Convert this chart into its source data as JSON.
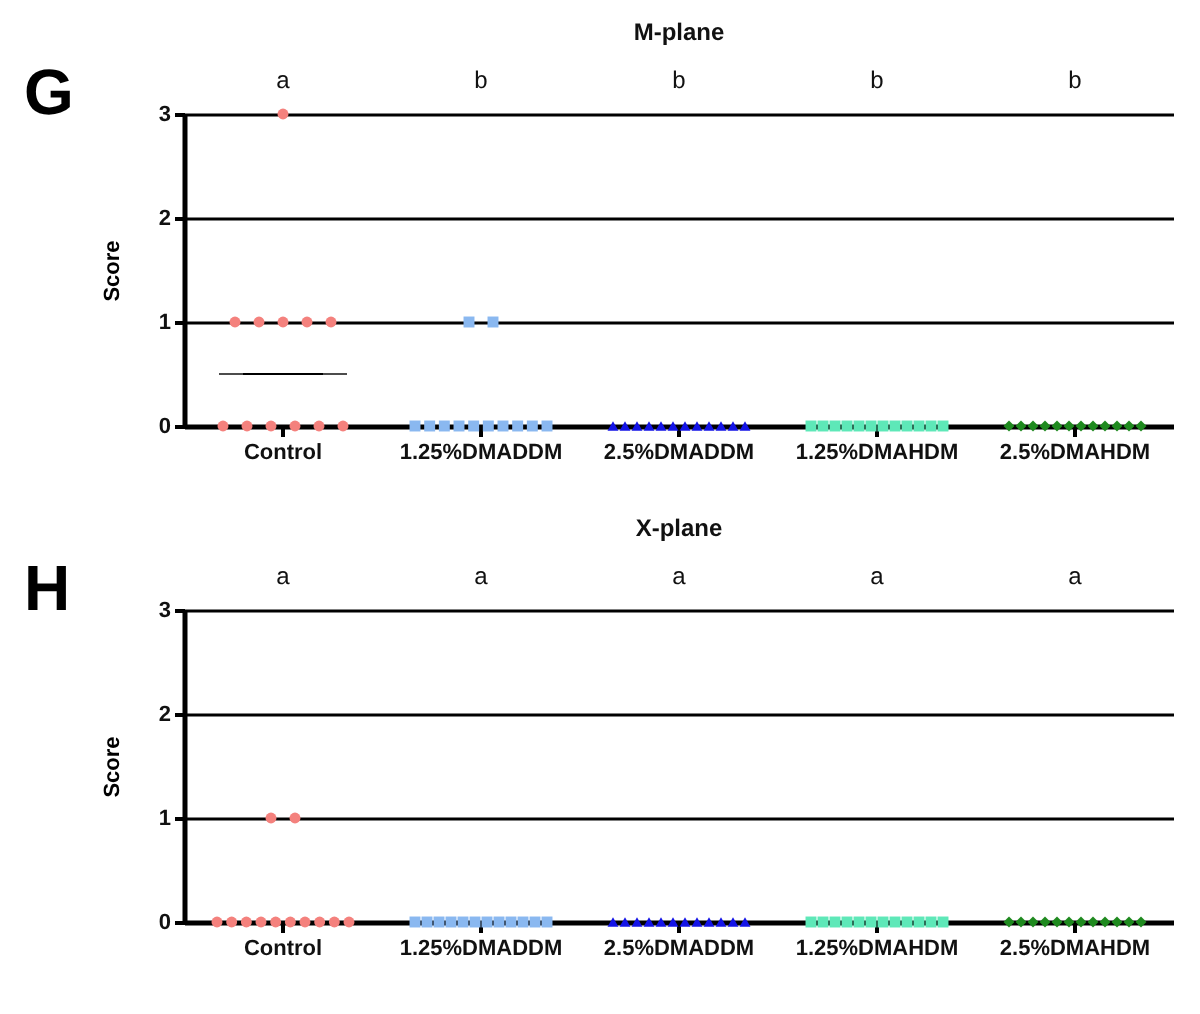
{
  "chart_data": [
    {
      "type": "scatter",
      "title": "M-plane",
      "ylabel": "Score",
      "categories": [
        "Control",
        "1.25%DMADDM",
        "2.5%DMADDM",
        "1.25%DMAHDM",
        "2.5%DMAHDM"
      ],
      "ylim": [
        0,
        3
      ],
      "yticks": [
        0,
        1,
        2,
        3
      ],
      "grid": "y",
      "series": [
        {
          "color": "#f4817d",
          "marker": "circle",
          "x": [
            "Control",
            "Control",
            "Control",
            "Control",
            "Control",
            "Control",
            "Control",
            "Control",
            "Control",
            "Control",
            "Control",
            "Control"
          ],
          "values": [
            3,
            1,
            1,
            1,
            1,
            1,
            0,
            0,
            0,
            0,
            0,
            0
          ]
        },
        {
          "color": "#8ab8f0",
          "marker": "square",
          "x": [
            "1.25%DMADDM",
            "1.25%DMADDM",
            "1.25%DMADDM",
            "1.25%DMADDM",
            "1.25%DMADDM",
            "1.25%DMADDM",
            "1.25%DMADDM",
            "1.25%DMADDM",
            "1.25%DMADDM",
            "1.25%DMADDM",
            "1.25%DMADDM",
            "1.25%DMADDM"
          ],
          "values": [
            1,
            1,
            0,
            0,
            0,
            0,
            0,
            0,
            0,
            0,
            0,
            0
          ]
        },
        {
          "color": "#1414e6",
          "marker": "triangle",
          "x": [
            "2.5%DMADDM",
            "2.5%DMADDM",
            "2.5%DMADDM",
            "2.5%DMADDM",
            "2.5%DMADDM",
            "2.5%DMADDM",
            "2.5%DMADDM",
            "2.5%DMADDM",
            "2.5%DMADDM",
            "2.5%DMADDM",
            "2.5%DMADDM",
            "2.5%DMADDM"
          ],
          "values": [
            0,
            0,
            0,
            0,
            0,
            0,
            0,
            0,
            0,
            0,
            0,
            0
          ]
        },
        {
          "color": "#5ee8b8",
          "marker": "square",
          "x": [
            "1.25%DMAHDM",
            "1.25%DMAHDM",
            "1.25%DMAHDM",
            "1.25%DMAHDM",
            "1.25%DMAHDM",
            "1.25%DMAHDM",
            "1.25%DMAHDM",
            "1.25%DMAHDM",
            "1.25%DMAHDM",
            "1.25%DMAHDM",
            "1.25%DMAHDM",
            "1.25%DMAHDM"
          ],
          "values": [
            0,
            0,
            0,
            0,
            0,
            0,
            0,
            0,
            0,
            0,
            0,
            0
          ]
        },
        {
          "color": "#1f8a1f",
          "marker": "diamond",
          "x": [
            "2.5%DMAHDM",
            "2.5%DMAHDM",
            "2.5%DMAHDM",
            "2.5%DMAHDM",
            "2.5%DMAHDM",
            "2.5%DMAHDM",
            "2.5%DMAHDM",
            "2.5%DMAHDM",
            "2.5%DMAHDM",
            "2.5%DMAHDM",
            "2.5%DMAHDM",
            "2.5%DMAHDM"
          ],
          "values": [
            0,
            0,
            0,
            0,
            0,
            0,
            0,
            0,
            0,
            0,
            0,
            0
          ]
        },
        {
          "type": "box",
          "color": "#000000",
          "boxes": [
            {
              "low": 0.5,
              "q1": 0.5,
              "median": 0.5,
              "q3": 0.5,
              "high": 0.5
            },
            null,
            null,
            null,
            null
          ]
        }
      ],
      "annotations": [
        "G",
        "a",
        "b",
        "b",
        "b",
        "b"
      ]
    },
    {
      "type": "scatter",
      "title": "X-plane",
      "ylabel": "Score",
      "categories": [
        "Control",
        "1.25%DMADDM",
        "2.5%DMADDM",
        "1.25%DMAHDM",
        "2.5%DMAHDM"
      ],
      "ylim": [
        0,
        3
      ],
      "yticks": [
        0,
        1,
        2,
        3
      ],
      "grid": "y",
      "series": [
        {
          "color": "#f4817d",
          "marker": "circle",
          "x": [
            "Control",
            "Control",
            "Control",
            "Control",
            "Control",
            "Control",
            "Control",
            "Control",
            "Control",
            "Control",
            "Control",
            "Control"
          ],
          "values": [
            1,
            1,
            0,
            0,
            0,
            0,
            0,
            0,
            0,
            0,
            0,
            0
          ]
        },
        {
          "color": "#8ab8f0",
          "marker": "square",
          "x": [
            "1.25%DMADDM",
            "1.25%DMADDM",
            "1.25%DMADDM",
            "1.25%DMADDM",
            "1.25%DMADDM",
            "1.25%DMADDM",
            "1.25%DMADDM",
            "1.25%DMADDM",
            "1.25%DMADDM",
            "1.25%DMADDM",
            "1.25%DMADDM",
            "1.25%DMADDM"
          ],
          "values": [
            0,
            0,
            0,
            0,
            0,
            0,
            0,
            0,
            0,
            0,
            0,
            0
          ]
        },
        {
          "color": "#1414e6",
          "marker": "triangle",
          "x": [
            "2.5%DMADDM",
            "2.5%DMADDM",
            "2.5%DMADDM",
            "2.5%DMADDM",
            "2.5%DMADDM",
            "2.5%DMADDM",
            "2.5%DMADDM",
            "2.5%DMADDM",
            "2.5%DMADDM",
            "2.5%DMADDM",
            "2.5%DMADDM",
            "2.5%DMADDM"
          ],
          "values": [
            0,
            0,
            0,
            0,
            0,
            0,
            0,
            0,
            0,
            0,
            0,
            0
          ]
        },
        {
          "color": "#5ee8b8",
          "marker": "square",
          "x": [
            "1.25%DMAHDM",
            "1.25%DMAHDM",
            "1.25%DMAHDM",
            "1.25%DMAHDM",
            "1.25%DMAHDM",
            "1.25%DMAHDM",
            "1.25%DMAHDM",
            "1.25%DMAHDM",
            "1.25%DMAHDM",
            "1.25%DMAHDM",
            "1.25%DMAHDM",
            "1.25%DMAHDM"
          ],
          "values": [
            0,
            0,
            0,
            0,
            0,
            0,
            0,
            0,
            0,
            0,
            0,
            0
          ]
        },
        {
          "color": "#1f8a1f",
          "marker": "diamond",
          "x": [
            "2.5%DMAHDM",
            "2.5%DMAHDM",
            "2.5%DMAHDM",
            "2.5%DMAHDM",
            "2.5%DMAHDM",
            "2.5%DMAHDM",
            "2.5%DMAHDM",
            "2.5%DMAHDM",
            "2.5%DMAHDM",
            "2.5%DMAHDM",
            "2.5%DMAHDM",
            "2.5%DMAHDM"
          ],
          "values": [
            0,
            0,
            0,
            0,
            0,
            0,
            0,
            0,
            0,
            0,
            0,
            0
          ]
        }
      ],
      "annotations": [
        "H",
        "a",
        "a",
        "a",
        "a",
        "a"
      ]
    }
  ]
}
